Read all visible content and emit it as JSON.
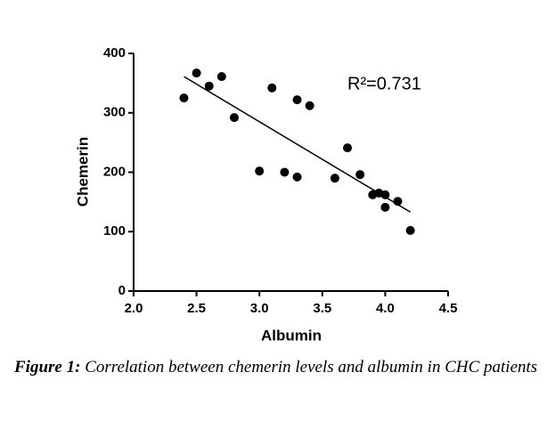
{
  "chart_data": {
    "type": "scatter",
    "x_label": "Albumin",
    "y_label": "Chemerin",
    "annotation": "R²=0.731",
    "x": [
      2.4,
      2.5,
      2.6,
      2.7,
      2.8,
      3.0,
      3.1,
      3.2,
      3.3,
      3.3,
      3.4,
      3.6,
      3.7,
      3.8,
      3.9,
      3.95,
      4.0,
      4.0,
      4.1,
      4.2
    ],
    "values": [
      325,
      367,
      345,
      361,
      292,
      202,
      342,
      200,
      192,
      322,
      312,
      190,
      241,
      196,
      162,
      165,
      162,
      141,
      151,
      102
    ],
    "color": "#000000",
    "fit": {
      "x": [
        2.4,
        4.2
      ],
      "y": [
        361,
        133
      ]
    },
    "xlim": [
      2,
      4.5
    ],
    "ylim": [
      0,
      400
    ],
    "xticks": [
      {
        "value": 2,
        "label": "2.0"
      },
      2.5,
      {
        "value": 3,
        "label": "3.0"
      },
      3.5,
      {
        "value": 4,
        "label": "4.0"
      },
      4.5
    ],
    "yticks": [
      0,
      100,
      200,
      300,
      400
    ]
  },
  "caption_label": "Figure 1:",
  "caption": "Correlation between chemerin levels and albumin in CHC patients"
}
